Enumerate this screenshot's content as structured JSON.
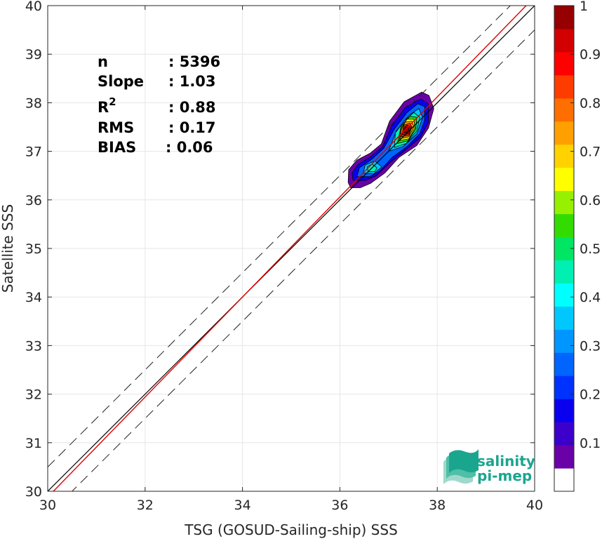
{
  "chart_data": {
    "type": "heatmap",
    "subtype": "2D density scatter (filled contours) with 1:1 line and regression",
    "xlabel": "TSG (GOSUD-Sailing-ship) SSS",
    "ylabel": "Satellite SSS",
    "xlim": [
      30,
      40
    ],
    "ylim": [
      30,
      40
    ],
    "x_ticks": [
      30,
      32,
      34,
      36,
      38,
      40
    ],
    "y_ticks": [
      30,
      31,
      32,
      33,
      34,
      35,
      36,
      37,
      38,
      39,
      40
    ],
    "grid": true,
    "stats": [
      {
        "label": "n",
        "value": ": 5396"
      },
      {
        "label": "Slope",
        "value": ": 1.03"
      },
      {
        "label": "R",
        "label_sup": "2",
        "value": ": 0.88"
      },
      {
        "label": "RMS",
        "value": ": 0.17"
      },
      {
        "label": "BIAS",
        "value": ": 0.06"
      }
    ],
    "lines": {
      "one_to_one": {
        "x": [
          30,
          40
        ],
        "y": [
          30,
          40
        ],
        "color": "#000000"
      },
      "regression": {
        "slope": 1.03,
        "intercept": -1.02,
        "color": "#e00000"
      },
      "envelope_offset": 0.5
    },
    "density_regions": [
      {
        "level": 0.05,
        "polygon": [
          [
            36.17,
            36.36
          ],
          [
            36.22,
            36.25
          ],
          [
            36.42,
            36.25
          ],
          [
            36.63,
            36.34
          ],
          [
            36.92,
            36.55
          ],
          [
            37.22,
            36.88
          ],
          [
            37.58,
            37.12
          ],
          [
            37.82,
            37.48
          ],
          [
            37.93,
            37.88
          ],
          [
            37.83,
            38.15
          ],
          [
            37.68,
            38.22
          ],
          [
            37.32,
            38.02
          ],
          [
            37.02,
            37.62
          ],
          [
            36.85,
            37.15
          ],
          [
            36.62,
            36.96
          ],
          [
            36.35,
            36.82
          ],
          [
            36.18,
            36.62
          ]
        ]
      },
      {
        "level": 0.15,
        "polygon": [
          [
            36.27,
            36.4
          ],
          [
            36.52,
            36.4
          ],
          [
            36.75,
            36.5
          ],
          [
            37.02,
            36.76
          ],
          [
            37.34,
            37.02
          ],
          [
            37.65,
            37.28
          ],
          [
            37.82,
            37.6
          ],
          [
            37.82,
            37.98
          ],
          [
            37.66,
            38.08
          ],
          [
            37.34,
            37.9
          ],
          [
            37.06,
            37.52
          ],
          [
            36.88,
            37.1
          ],
          [
            36.62,
            36.88
          ],
          [
            36.36,
            36.72
          ],
          [
            36.25,
            36.55
          ]
        ]
      },
      {
        "level": 0.25,
        "polygon": [
          [
            36.35,
            36.48
          ],
          [
            36.62,
            36.48
          ],
          [
            36.82,
            36.6
          ],
          [
            37.08,
            36.88
          ],
          [
            37.38,
            37.1
          ],
          [
            37.64,
            37.36
          ],
          [
            37.74,
            37.64
          ],
          [
            37.74,
            37.92
          ],
          [
            37.6,
            37.98
          ],
          [
            37.38,
            37.8
          ],
          [
            37.12,
            37.46
          ],
          [
            36.9,
            37.06
          ],
          [
            36.66,
            36.84
          ],
          [
            36.4,
            36.66
          ]
        ]
      },
      {
        "level": 0.35,
        "polygon": [
          [
            36.48,
            36.55
          ],
          [
            36.7,
            36.54
          ],
          [
            36.86,
            36.68
          ],
          [
            36.72,
            36.8
          ],
          [
            36.52,
            36.72
          ]
        ]
      },
      {
        "level": 0.35,
        "polygon": [
          [
            37.0,
            37.0
          ],
          [
            37.3,
            37.1
          ],
          [
            37.58,
            37.36
          ],
          [
            37.7,
            37.7
          ],
          [
            37.62,
            37.88
          ],
          [
            37.42,
            37.74
          ],
          [
            37.16,
            37.42
          ]
        ]
      },
      {
        "level": 0.45,
        "polygon": [
          [
            36.58,
            36.58
          ],
          [
            36.72,
            36.58
          ],
          [
            36.76,
            36.66
          ],
          [
            36.66,
            36.74
          ],
          [
            36.56,
            36.68
          ]
        ]
      },
      {
        "level": 0.45,
        "polygon": [
          [
            37.12,
            37.08
          ],
          [
            37.36,
            37.16
          ],
          [
            37.58,
            37.42
          ],
          [
            37.64,
            37.7
          ],
          [
            37.52,
            37.8
          ],
          [
            37.32,
            37.62
          ],
          [
            37.14,
            37.38
          ]
        ]
      },
      {
        "level": 0.55,
        "polygon": [
          [
            37.18,
            37.16
          ],
          [
            37.4,
            37.22
          ],
          [
            37.56,
            37.46
          ],
          [
            37.58,
            37.7
          ],
          [
            37.44,
            37.72
          ],
          [
            37.26,
            37.52
          ]
        ]
      },
      {
        "level": 0.62,
        "polygon": [
          [
            37.22,
            37.22
          ],
          [
            37.42,
            37.26
          ],
          [
            37.54,
            37.48
          ],
          [
            37.52,
            37.66
          ],
          [
            37.38,
            37.66
          ],
          [
            37.26,
            37.48
          ]
        ]
      },
      {
        "level": 0.72,
        "polygon": [
          [
            37.24,
            37.26
          ],
          [
            37.42,
            37.3
          ],
          [
            37.52,
            37.5
          ],
          [
            37.48,
            37.62
          ],
          [
            37.34,
            37.6
          ],
          [
            37.26,
            37.44
          ]
        ]
      },
      {
        "level": 0.82,
        "polygon": [
          [
            37.26,
            37.3
          ],
          [
            37.42,
            37.33
          ],
          [
            37.48,
            37.5
          ],
          [
            37.44,
            37.58
          ],
          [
            37.32,
            37.54
          ]
        ]
      },
      {
        "level": 0.92,
        "polygon": [
          [
            37.28,
            37.34
          ],
          [
            37.42,
            37.36
          ],
          [
            37.46,
            37.5
          ],
          [
            37.38,
            37.54
          ],
          [
            37.3,
            37.48
          ]
        ]
      },
      {
        "level": 0.98,
        "polygon": [
          [
            37.32,
            37.38
          ],
          [
            37.4,
            37.4
          ],
          [
            37.42,
            37.48
          ],
          [
            37.36,
            37.5
          ],
          [
            37.32,
            37.46
          ]
        ]
      }
    ],
    "colorbar": {
      "range": [
        0,
        1
      ],
      "tick_values": [
        0.1,
        0.2,
        0.3,
        0.4,
        0.5,
        0.6,
        0.7,
        0.8,
        0.9,
        1
      ],
      "tick_labels": [
        "0.1",
        "0.2",
        "0.3",
        "0.4",
        "0.5",
        "0.6",
        "0.7",
        "0.8",
        "0.9",
        "1"
      ],
      "colors": [
        "#ffffff",
        "#6a00a8",
        "#3c00cc",
        "#0a00f0",
        "#0032ff",
        "#0064ff",
        "#0096ff",
        "#00c8ff",
        "#00ffff",
        "#00f0b4",
        "#00e664",
        "#32dc00",
        "#96f000",
        "#ffff00",
        "#ffd200",
        "#ffa000",
        "#ff6e00",
        "#ff3c00",
        "#ff0000",
        "#d20000",
        "#960000"
      ]
    }
  },
  "logo": {
    "line1": "salinity",
    "line2": "pi-mep"
  }
}
